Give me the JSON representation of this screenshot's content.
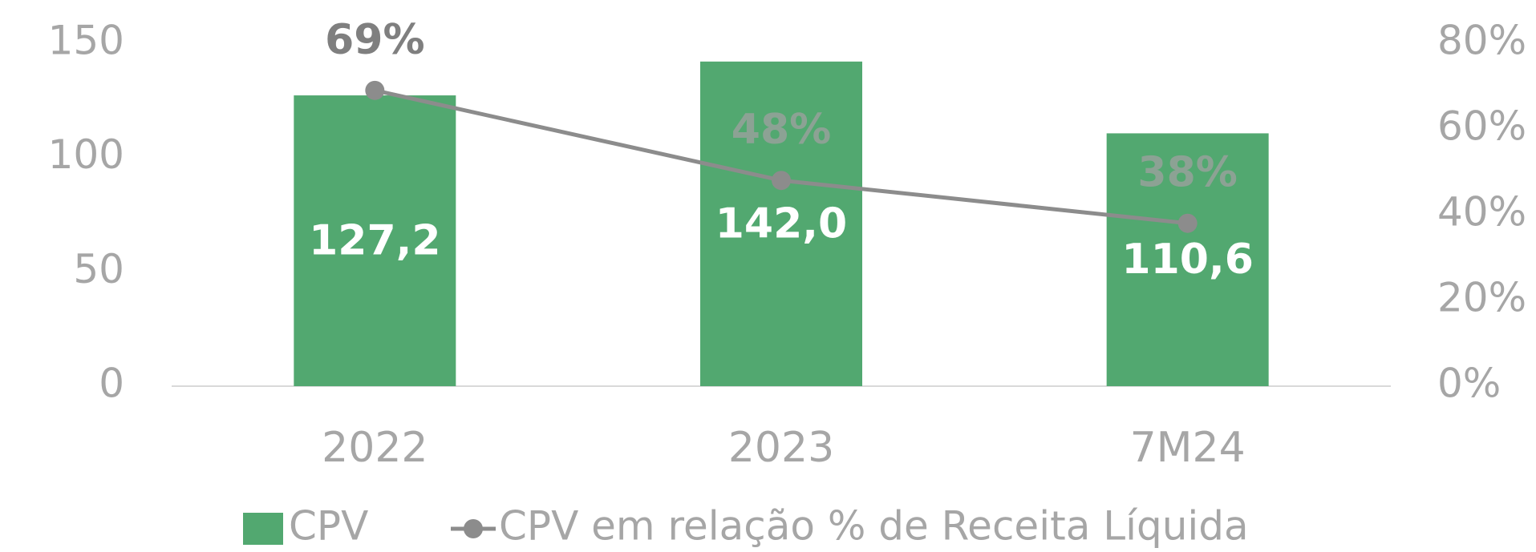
{
  "chart_data": {
    "type": "bar",
    "categories": [
      "2022",
      "2023",
      "7M24"
    ],
    "series": [
      {
        "name": "CPV",
        "color": "#52a870",
        "values": [
          127.2,
          142.0,
          110.6
        ],
        "value_labels": [
          "127,2",
          "142,0",
          "110,6"
        ]
      },
      {
        "name": "CPV em relação % de Receita Líquida",
        "color": "#8c8c8c",
        "type": "line",
        "axis": "y2",
        "values": [
          69,
          48,
          38
        ],
        "value_labels": [
          "69%",
          "48%",
          "38%"
        ]
      }
    ],
    "ylim": [
      0,
      150
    ],
    "yticks": [
      0,
      50,
      100,
      150
    ],
    "y2lim": [
      0,
      80
    ],
    "y2ticks": [
      {
        "value": 0,
        "label": "0%"
      },
      {
        "value": 20,
        "label": "20%"
      },
      {
        "value": 40,
        "label": "40%"
      },
      {
        "value": 60,
        "label": "60%"
      },
      {
        "value": 80,
        "label": "80%"
      }
    ],
    "legend": "bottom"
  }
}
